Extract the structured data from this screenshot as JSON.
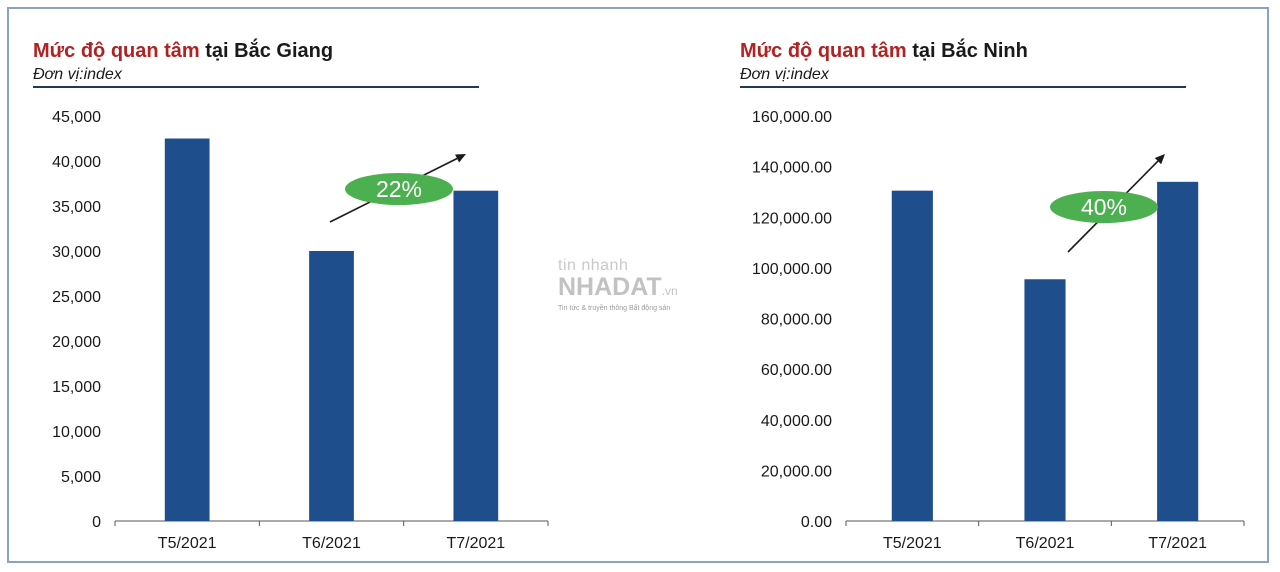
{
  "watermark": {
    "line1": "tin nhanh",
    "brand": "NHADAT",
    "suffix": ".vn",
    "tagline": "Tin tức & truyền thông Bất động sản"
  },
  "chart_data": [
    {
      "type": "bar",
      "title_highlight": "Mức độ quan tâm",
      "title_rest": " tại Bắc Giang",
      "unit": "Đơn vị:index",
      "categories": [
        "T5/2021",
        "T6/2021",
        "T7/2021"
      ],
      "values": [
        42500,
        30000,
        36700
      ],
      "ylim": [
        0,
        45000
      ],
      "yticks": [
        "0",
        "5,000",
        "10,000",
        "15,000",
        "20,000",
        "25,000",
        "30,000",
        "35,000",
        "40,000",
        "45,000"
      ],
      "annotation": "22%",
      "bar_color": "#1f4e8c",
      "badge_color": "#4caf50",
      "grid": false
    },
    {
      "type": "bar",
      "title_highlight": "Mức độ quan tâm",
      "title_rest": " tại Bắc Ninh",
      "unit": "Đơn vị:index",
      "categories": [
        "T5/2021",
        "T6/2021",
        "T7/2021"
      ],
      "values": [
        130500,
        95500,
        134000
      ],
      "ylim": [
        0,
        160000
      ],
      "yticks": [
        "0.00",
        "20,000.00",
        "40,000.00",
        "60,000.00",
        "80,000.00",
        "100,000.00",
        "120,000.00",
        "140,000.00",
        "160,000.00"
      ],
      "annotation": "40%",
      "bar_color": "#1f4e8c",
      "badge_color": "#4caf50",
      "grid": false
    }
  ]
}
